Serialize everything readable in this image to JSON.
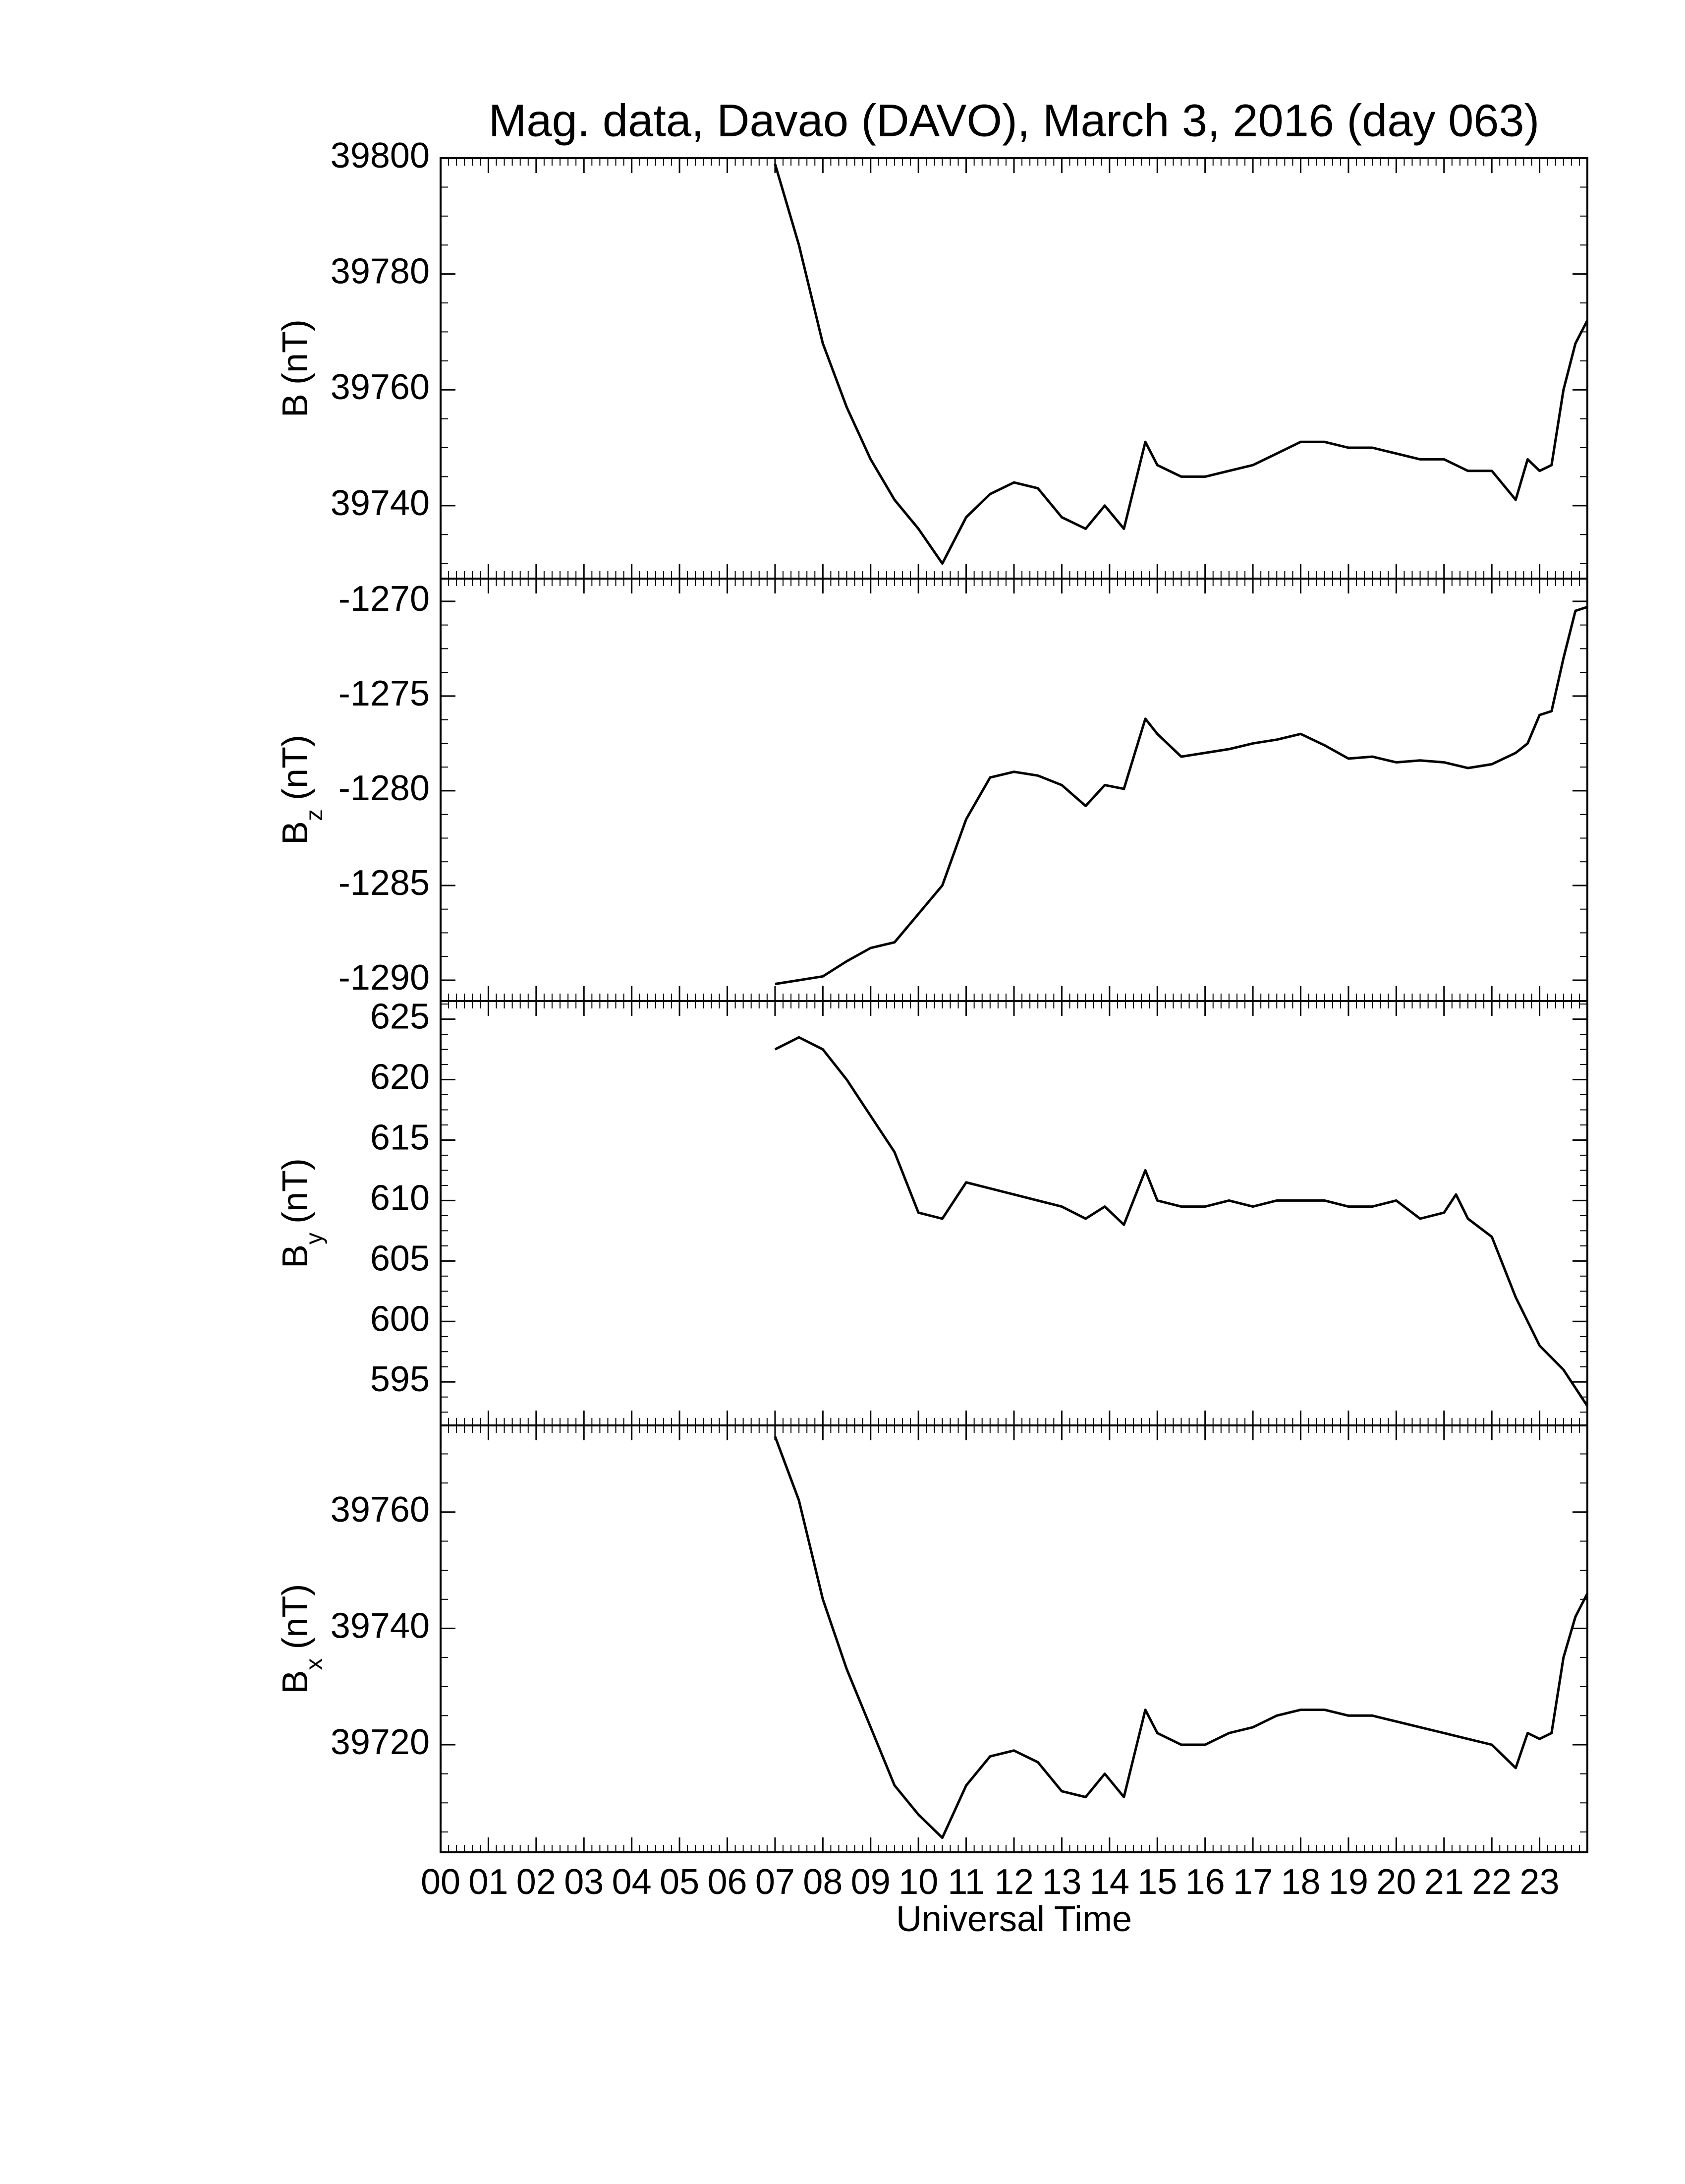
{
  "chart_data": [
    {
      "type": "line",
      "title": "Mag. data, Davao (DAVO), March 3, 2016 (day 063)",
      "ylabel": [
        "B",
        "(nT)"
      ],
      "ylim": [
        39727.4,
        39800
      ],
      "yticks": [
        39740,
        39760,
        39780,
        39800
      ],
      "series": [
        {
          "color": "#000000",
          "x": [
            7.0,
            7.5,
            8.0,
            8.5,
            9.0,
            9.5,
            10.0,
            10.5,
            11.0,
            11.5,
            12.0,
            12.5,
            13.0,
            13.5,
            13.9,
            14.3,
            14.75,
            15.0,
            15.5,
            16.0,
            16.5,
            17.0,
            17.5,
            18.0,
            18.5,
            19.0,
            19.5,
            20.0,
            20.5,
            21.0,
            21.5,
            22.0,
            22.5,
            22.75,
            23.0,
            23.25,
            23.5,
            23.75,
            24.0
          ],
          "values": [
            39799,
            39785,
            39768,
            39757,
            39748,
            39741,
            39736,
            39730,
            39738,
            39742,
            39744,
            39743,
            39738,
            39736,
            39740,
            39736,
            39751,
            39747,
            39745,
            39745,
            39746,
            39747,
            39749,
            39751,
            39751,
            39750,
            39750,
            39749,
            39748,
            39748,
            39746,
            39746,
            39741,
            39748,
            39746,
            39747,
            39760,
            39768,
            39772
          ]
        }
      ]
    },
    {
      "type": "line",
      "ylabel": [
        "B",
        "z",
        "(nT)"
      ],
      "ylim": [
        -1291.1,
        -1268.8
      ],
      "yticks": [
        -1290,
        -1285,
        -1280,
        -1275,
        -1270
      ],
      "series": [
        {
          "color": "#000000",
          "x": [
            7.0,
            7.5,
            8.0,
            8.5,
            9.0,
            9.5,
            10.0,
            10.5,
            11.0,
            11.5,
            12.0,
            12.5,
            13.0,
            13.5,
            13.9,
            14.3,
            14.75,
            15.0,
            15.5,
            16.0,
            16.5,
            17.0,
            17.5,
            18.0,
            18.5,
            19.0,
            19.5,
            20.0,
            20.5,
            21.0,
            21.5,
            22.0,
            22.5,
            22.75,
            23.0,
            23.25,
            23.5,
            23.75,
            24.0
          ],
          "values": [
            -1290.2,
            -1290,
            -1289.8,
            -1289,
            -1288.3,
            -1288,
            -1286.5,
            -1285,
            -1281.5,
            -1279.3,
            -1279,
            -1279.2,
            -1279.7,
            -1280.8,
            -1279.7,
            -1279.9,
            -1276.2,
            -1277,
            -1278.2,
            -1278,
            -1277.8,
            -1277.5,
            -1277.3,
            -1277,
            -1277.6,
            -1278.3,
            -1278.2,
            -1278.5,
            -1278.4,
            -1278.5,
            -1278.8,
            -1278.6,
            -1278,
            -1277.5,
            -1276,
            -1275.8,
            -1273,
            -1270.5,
            -1270.3
          ]
        }
      ]
    },
    {
      "type": "line",
      "ylabel": [
        "B",
        "y",
        "(nT)"
      ],
      "ylim": [
        591.4,
        626.5
      ],
      "yticks": [
        595,
        600,
        605,
        610,
        615,
        620,
        625
      ],
      "series": [
        {
          "color": "#000000",
          "x": [
            7.0,
            7.5,
            8.0,
            8.5,
            9.0,
            9.5,
            10.0,
            10.5,
            11.0,
            11.5,
            12.0,
            12.5,
            13.0,
            13.5,
            13.9,
            14.3,
            14.75,
            15.0,
            15.5,
            16.0,
            16.5,
            17.0,
            17.5,
            18.0,
            18.5,
            19.0,
            19.5,
            20.0,
            20.5,
            21.0,
            21.25,
            21.5,
            22.0,
            22.5,
            23.0,
            23.5,
            24.0
          ],
          "values": [
            622.5,
            623.5,
            622.5,
            620,
            617,
            614,
            609,
            608.5,
            611.5,
            611,
            610.5,
            610,
            609.5,
            608.5,
            609.5,
            608,
            612.5,
            610,
            609.5,
            609.5,
            610,
            609.5,
            610,
            610,
            610,
            609.5,
            609.5,
            610,
            608.5,
            609,
            610.5,
            608.5,
            607,
            602,
            598,
            596,
            593
          ]
        }
      ]
    },
    {
      "type": "line",
      "ylabel": [
        "B",
        "x",
        "(nT)"
      ],
      "xlabel": "Universal Time",
      "ylim": [
        39701.5,
        39774.9
      ],
      "yticks": [
        39720,
        39740,
        39760
      ],
      "xlim": [
        0,
        24
      ],
      "xticks": [
        {
          "value": 0,
          "label": "00"
        },
        {
          "value": 1,
          "label": "01"
        },
        {
          "value": 2,
          "label": "02"
        },
        {
          "value": 3,
          "label": "03"
        },
        {
          "value": 4,
          "label": "04"
        },
        {
          "value": 5,
          "label": "05"
        },
        {
          "value": 6,
          "label": "06"
        },
        {
          "value": 7,
          "label": "07"
        },
        {
          "value": 8,
          "label": "08"
        },
        {
          "value": 9,
          "label": "09"
        },
        10,
        11,
        12,
        13,
        14,
        15,
        16,
        17,
        18,
        19,
        20,
        21,
        22,
        23
      ],
      "series": [
        {
          "color": "#000000",
          "x": [
            7.0,
            7.5,
            8.0,
            8.5,
            9.0,
            9.5,
            10.0,
            10.5,
            11.0,
            11.5,
            12.0,
            12.5,
            13.0,
            13.5,
            13.9,
            14.3,
            14.75,
            15.0,
            15.5,
            16.0,
            16.5,
            17.0,
            17.5,
            18.0,
            18.5,
            19.0,
            19.5,
            20.0,
            20.5,
            21.0,
            21.5,
            22.0,
            22.5,
            22.75,
            23.0,
            23.25,
            23.5,
            23.75,
            24.0
          ],
          "values": [
            39773,
            39762,
            39745,
            39733,
            39723,
            39713,
            39708,
            39704,
            39713,
            39718,
            39719,
            39717,
            39712,
            39711,
            39715,
            39711,
            39726,
            39722,
            39720,
            39720,
            39722,
            39723,
            39725,
            39726,
            39726,
            39725,
            39725,
            39724,
            39723,
            39722,
            39721,
            39720,
            39716,
            39722,
            39721,
            39722,
            39735,
            39742,
            39746
          ]
        }
      ]
    }
  ]
}
